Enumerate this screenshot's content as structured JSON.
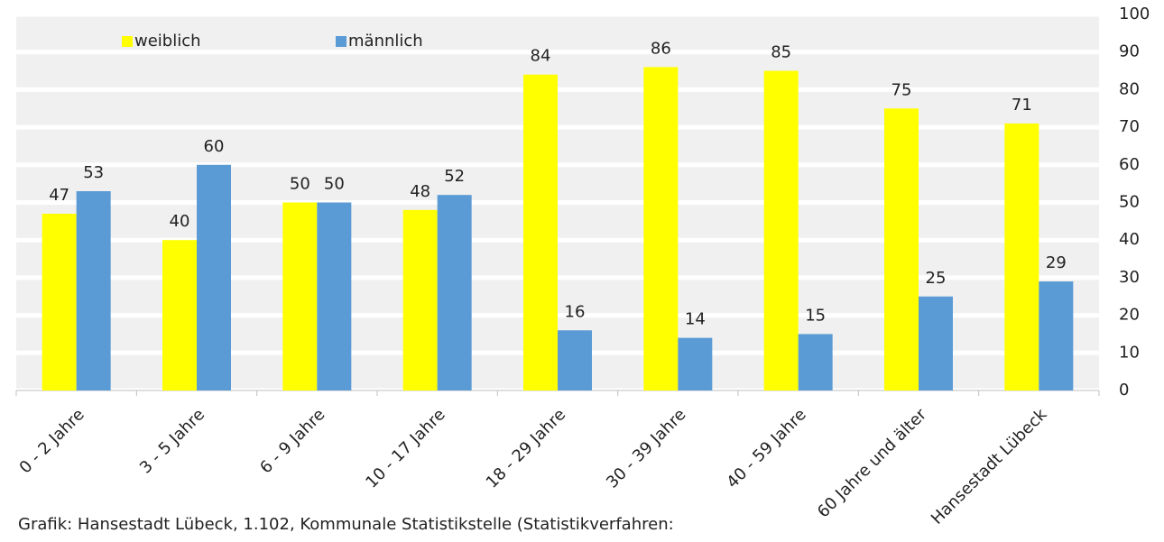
{
  "chart_data": {
    "type": "bar",
    "categories": [
      "0 - 2 Jahre",
      "3 - 5 Jahre",
      "6 - 9 Jahre",
      "10 - 17  Jahre",
      "18 - 29 Jahre",
      "30 - 39 Jahre",
      "40 - 59 Jahre",
      "60 Jahre und älter",
      "Hansestadt Lübeck"
    ],
    "series": [
      {
        "name": "weiblich",
        "color": "#ffff00",
        "values": [
          47,
          40,
          50,
          48,
          84,
          86,
          85,
          75,
          71
        ]
      },
      {
        "name": "männlich",
        "color": "#5b9bd5",
        "values": [
          53,
          60,
          50,
          52,
          16,
          14,
          15,
          25,
          29
        ]
      }
    ],
    "ylim": [
      0,
      100
    ],
    "yticks": [
      0,
      10,
      20,
      30,
      40,
      50,
      60,
      70,
      80,
      90,
      100
    ],
    "grid": true,
    "legend": "top-left",
    "source": "Grafik: Hansestadt Lübeck, 1.102, Kommunale Statistikstelle (Statistikverfahren:"
  }
}
